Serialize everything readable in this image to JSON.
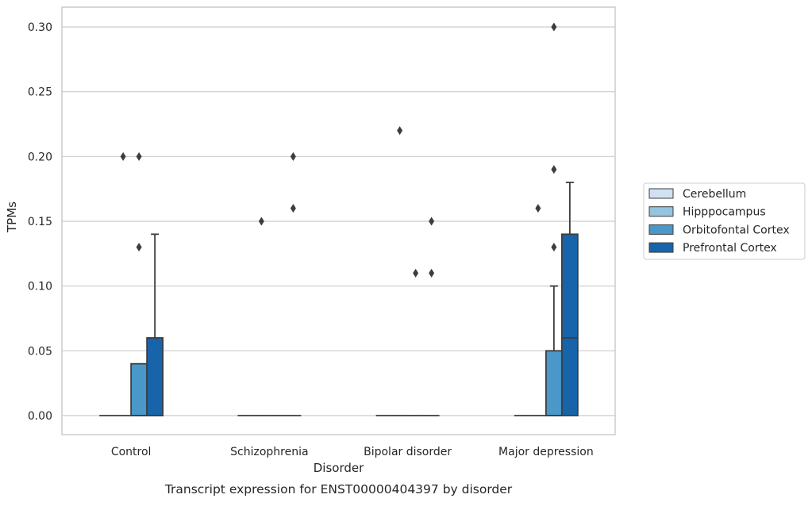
{
  "chart_data": {
    "type": "box",
    "title": "Transcript expression for ENST00000404397 by disorder",
    "xlabel": "Disorder",
    "ylabel": "TPMs",
    "ylim": [
      -0.015,
      0.315
    ],
    "yticks": [
      0.0,
      0.05,
      0.1,
      0.15,
      0.2,
      0.25,
      0.3
    ],
    "ytick_labels": [
      "0.00",
      "0.05",
      "0.10",
      "0.15",
      "0.20",
      "0.25",
      "0.30"
    ],
    "grid": true,
    "legend_position": "right",
    "categories": [
      "Control",
      "Schizophrenia",
      "Bipolar disorder",
      "Major depression"
    ],
    "series": [
      {
        "name": "Cerebellum",
        "color": "#d0e1f2",
        "boxes": [
          {
            "q1": 0,
            "median": 0,
            "q3": 0,
            "whisker_low": 0,
            "whisker_high": 0,
            "outliers": []
          },
          {
            "q1": 0,
            "median": 0,
            "q3": 0,
            "whisker_low": 0,
            "whisker_high": 0,
            "outliers": []
          },
          {
            "q1": 0,
            "median": 0,
            "q3": 0,
            "whisker_low": 0,
            "whisker_high": 0,
            "outliers": []
          },
          {
            "q1": 0,
            "median": 0,
            "q3": 0,
            "whisker_low": 0,
            "whisker_high": 0,
            "outliers": []
          }
        ]
      },
      {
        "name": "Hipppocampus",
        "color": "#94c4df",
        "boxes": [
          {
            "q1": 0,
            "median": 0,
            "q3": 0,
            "whisker_low": 0,
            "whisker_high": 0,
            "outliers": [
              0.2
            ]
          },
          {
            "q1": 0,
            "median": 0,
            "q3": 0,
            "whisker_low": 0,
            "whisker_high": 0,
            "outliers": [
              0.15
            ]
          },
          {
            "q1": 0,
            "median": 0,
            "q3": 0,
            "whisker_low": 0,
            "whisker_high": 0,
            "outliers": [
              0.22
            ]
          },
          {
            "q1": 0,
            "median": 0,
            "q3": 0,
            "whisker_low": 0,
            "whisker_high": 0,
            "outliers": [
              0.16
            ]
          }
        ]
      },
      {
        "name": "Orbitofontal Cortex",
        "color": "#4a98c9",
        "boxes": [
          {
            "q1": 0,
            "median": 0,
            "q3": 0.04,
            "whisker_low": 0,
            "whisker_high": 0.04,
            "outliers": [
              0.13,
              0.2
            ]
          },
          {
            "q1": 0,
            "median": 0,
            "q3": 0,
            "whisker_low": 0,
            "whisker_high": 0,
            "outliers": []
          },
          {
            "q1": 0,
            "median": 0,
            "q3": 0,
            "whisker_low": 0,
            "whisker_high": 0,
            "outliers": [
              0.11
            ]
          },
          {
            "q1": 0,
            "median": 0,
            "q3": 0.05,
            "whisker_low": 0,
            "whisker_high": 0.1,
            "outliers": [
              0.13,
              0.19,
              0.3
            ]
          }
        ]
      },
      {
        "name": "Prefrontal Cortex",
        "color": "#1764ab",
        "boxes": [
          {
            "q1": 0,
            "median": 0,
            "q3": 0.06,
            "whisker_low": 0,
            "whisker_high": 0.14,
            "outliers": []
          },
          {
            "q1": 0,
            "median": 0,
            "q3": 0,
            "whisker_low": 0,
            "whisker_high": 0,
            "outliers": [
              0.16,
              0.2
            ]
          },
          {
            "q1": 0,
            "median": 0,
            "q3": 0,
            "whisker_low": 0,
            "whisker_high": 0,
            "outliers": [
              0.11,
              0.15
            ]
          },
          {
            "q1": 0,
            "median": 0.06,
            "q3": 0.14,
            "whisker_low": 0,
            "whisker_high": 0.18,
            "outliers": []
          }
        ]
      }
    ]
  }
}
